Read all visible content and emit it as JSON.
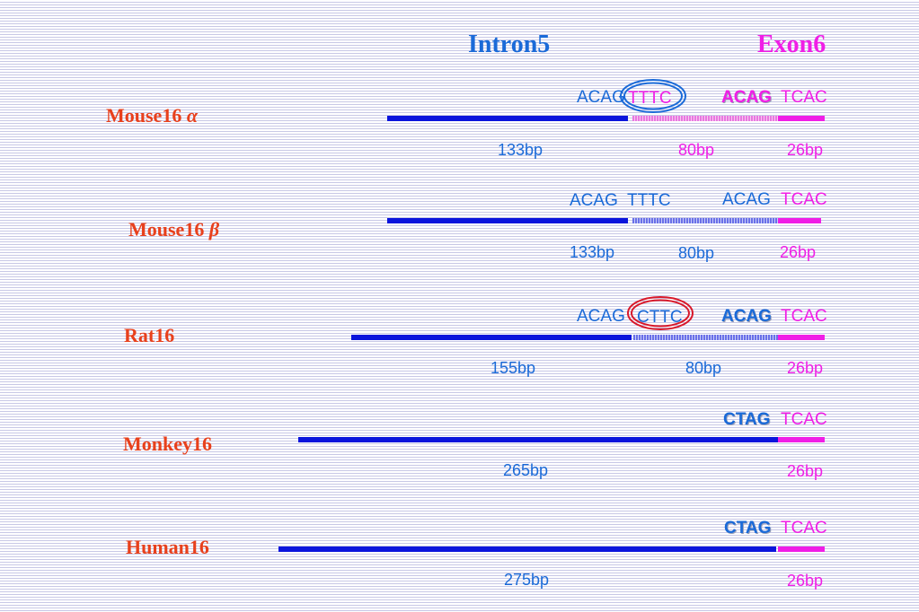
{
  "headers": {
    "intron": "Intron5",
    "exon": "Exon6"
  },
  "colors": {
    "blue_text": "#1a6ad8",
    "pink_text": "#f01ee6",
    "species_text": "#e8401c",
    "intron_bar": "#0a14dc",
    "exon_bar": "#f01ee6",
    "ring_blue": "#1a6ad8",
    "ring_red": "#d8182a"
  },
  "rows": [
    {
      "species": "Mouse16",
      "greek": "α",
      "seq_intron": "ACAG",
      "seq_motif": "TTTC",
      "seq_acceptor": "ACAG",
      "seq_exon": "TCAC",
      "bp_intron": "133bp",
      "bp_mid": "80bp",
      "bp_exon": "26bp"
    },
    {
      "species": "Mouse16",
      "greek": "β",
      "seq_intron": "ACAG",
      "seq_motif": "TTTC",
      "seq_acceptor": "ACAG",
      "seq_exon": "TCAC",
      "bp_intron": "133bp",
      "bp_mid": "80bp",
      "bp_exon": "26bp"
    },
    {
      "species": "Rat16",
      "greek": "",
      "seq_intron": "ACAG",
      "seq_motif": "CTTC",
      "seq_acceptor": "ACAG",
      "seq_exon": "TCAC",
      "bp_intron": "155bp",
      "bp_mid": "80bp",
      "bp_exon": "26bp"
    },
    {
      "species": "Monkey16",
      "greek": "",
      "seq_acceptor": "CTAG",
      "seq_exon": "TCAC",
      "bp_intron": "265bp",
      "bp_exon": "26bp"
    },
    {
      "species": "Human16",
      "greek": "",
      "seq_acceptor": "CTAG",
      "seq_exon": "TCAC",
      "bp_intron": "275bp",
      "bp_exon": "26bp"
    }
  ]
}
